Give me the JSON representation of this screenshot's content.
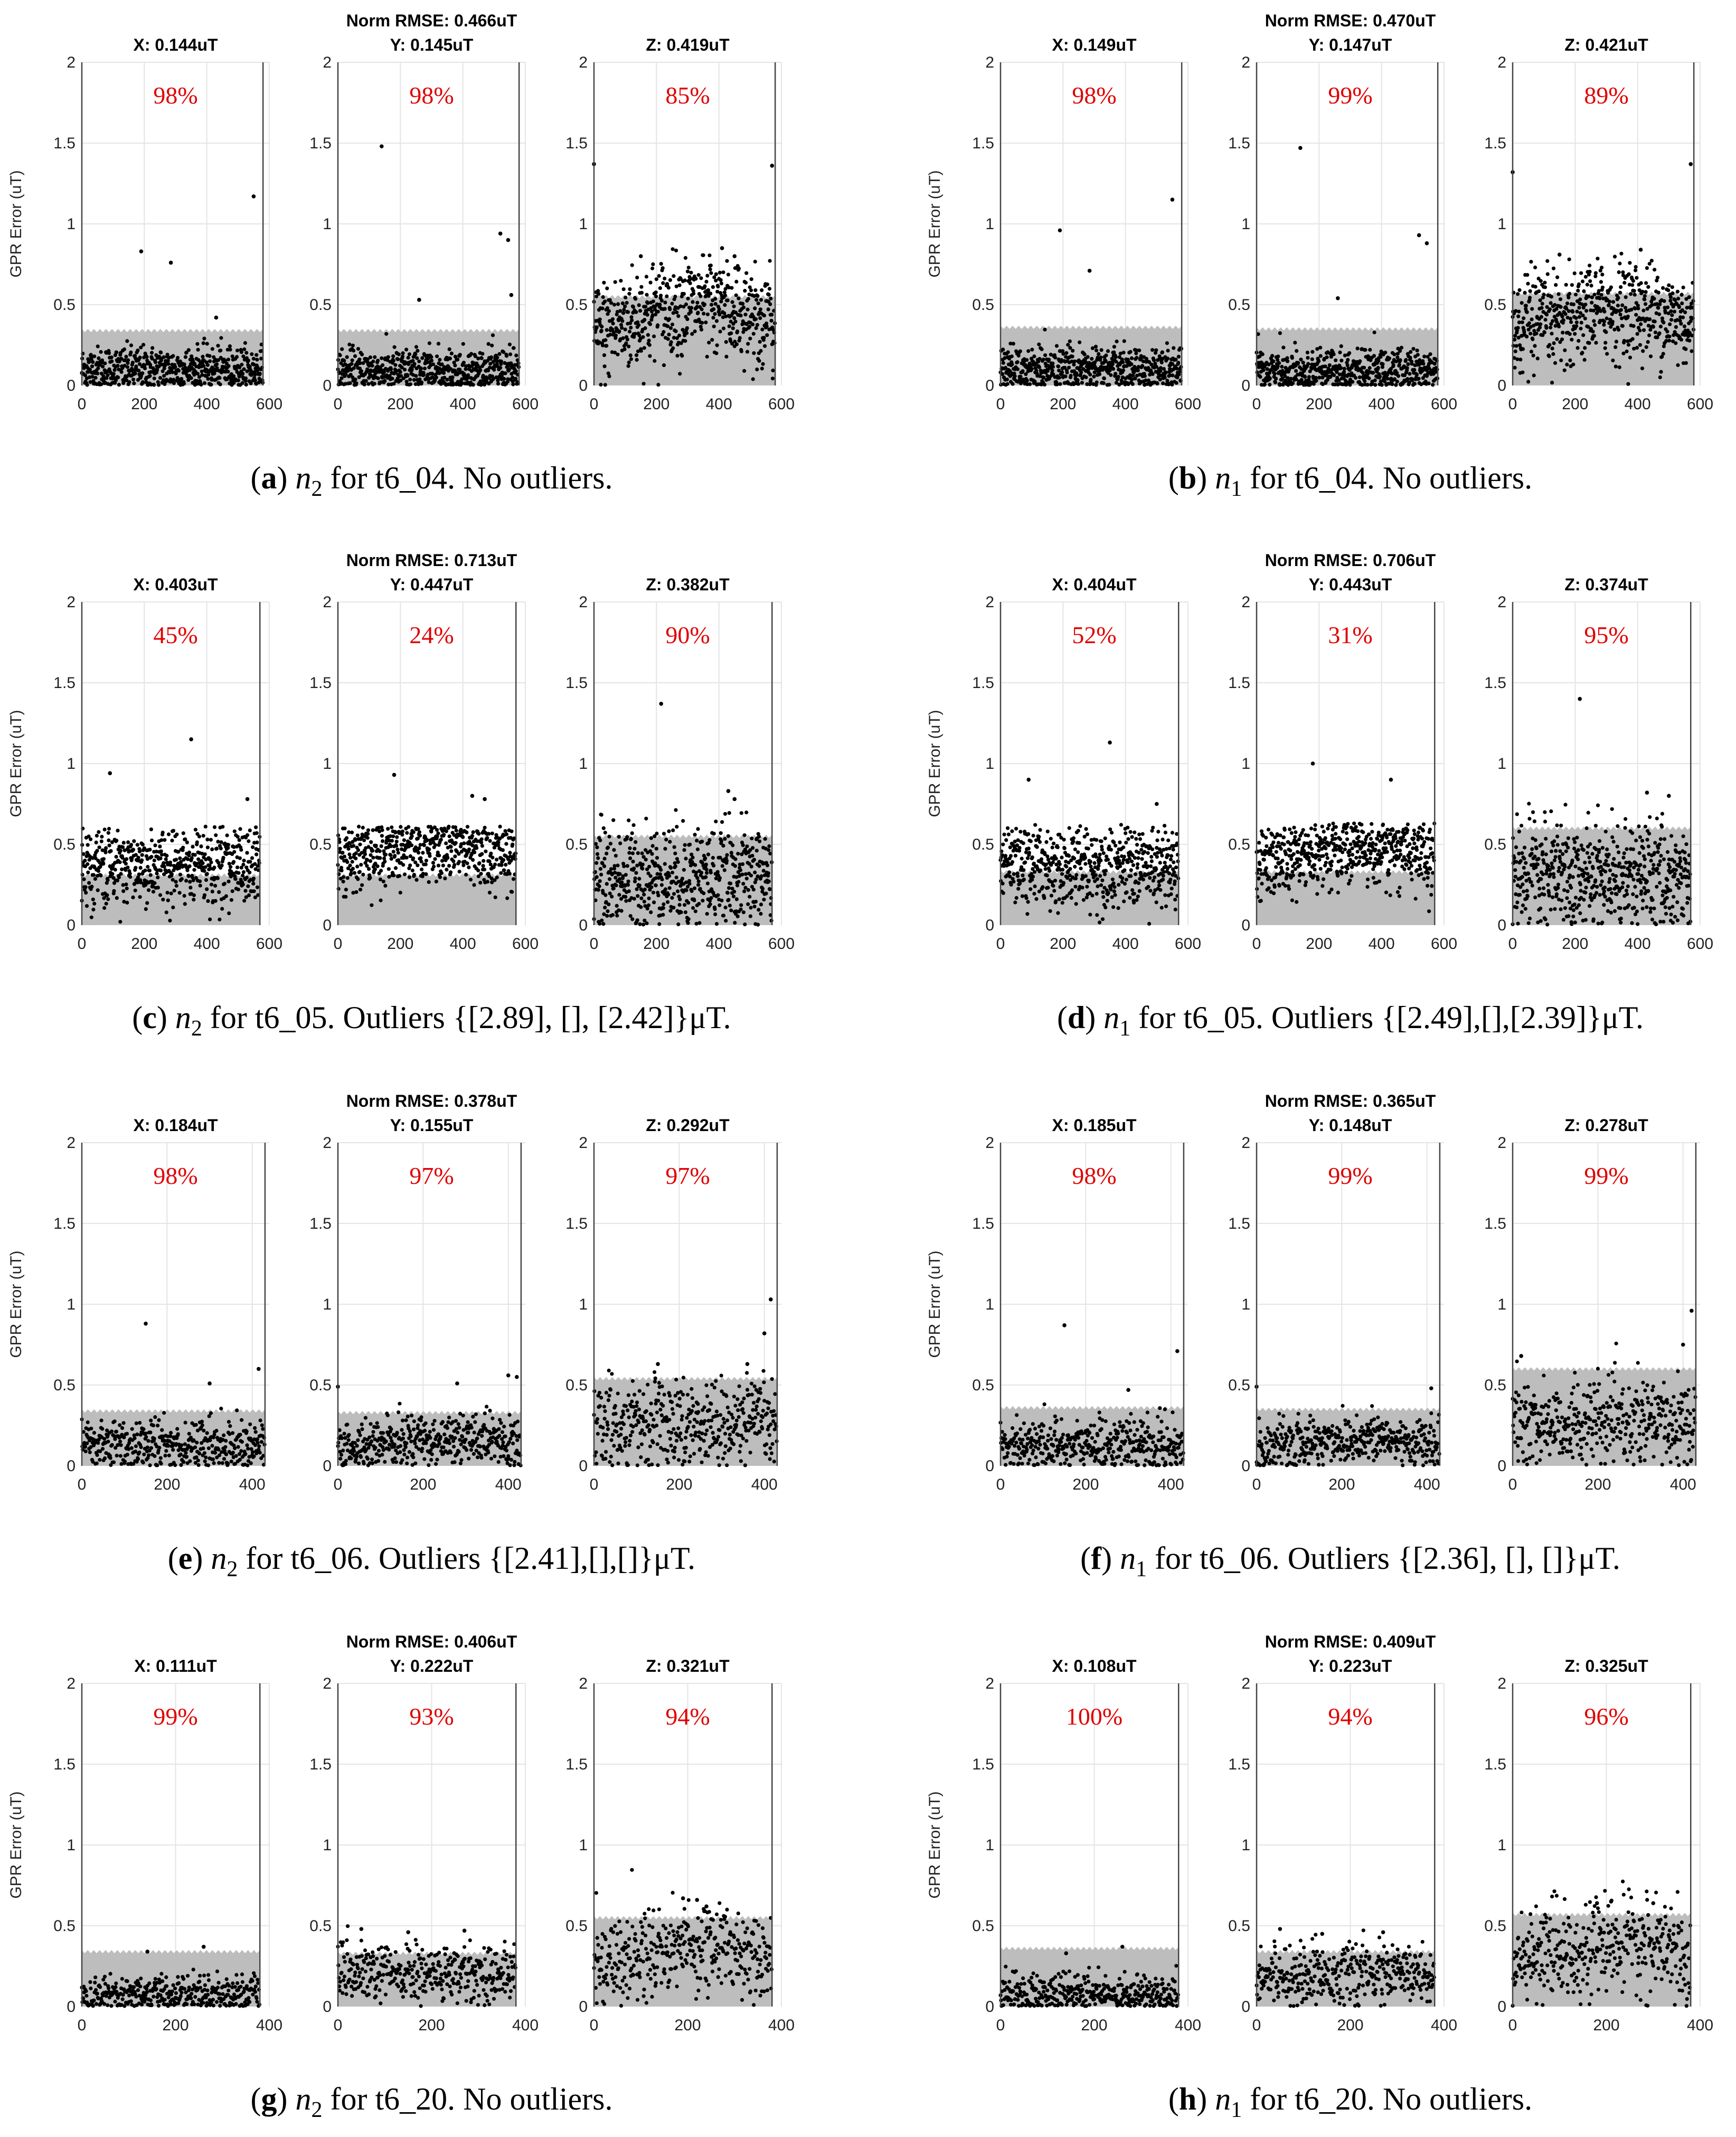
{
  "chart_data": {
    "type": "scatter",
    "ylabel": "GPR Error (uT)",
    "ylim": [
      0,
      2
    ],
    "yticks": [
      "0",
      "0.5",
      "1",
      "1.5",
      "2"
    ],
    "panels": [
      {
        "id": "a",
        "title": "Norm RMSE: 0.466uT",
        "caption": {
          "letter": "a",
          "node": "n",
          "sub": "2",
          "text": " for t6_04. No outliers."
        },
        "xmax": 600,
        "xticks": [
          "0",
          "200",
          "400",
          "600"
        ],
        "npts": 580,
        "subplots": [
          {
            "label": "X: 0.144uT",
            "pct": "98%",
            "band": 0.34,
            "mean": 0.1,
            "sd": 0.07,
            "trend": 0,
            "outliers": [
              [
                190,
                0.83
              ],
              [
                285,
                0.76
              ],
              [
                430,
                0.42
              ],
              [
                550,
                1.17
              ]
            ]
          },
          {
            "label": "Y: 0.145uT",
            "pct": "98%",
            "band": 0.34,
            "mean": 0.09,
            "sd": 0.07,
            "trend": 0,
            "outliers": [
              [
                140,
                1.48
              ],
              [
                260,
                0.53
              ],
              [
                520,
                0.94
              ],
              [
                545,
                0.9
              ],
              [
                555,
                0.56
              ]
            ]
          },
          {
            "label": "Z: 0.419uT",
            "pct": "85%",
            "band": 0.55,
            "mean": 0.38,
            "sd": 0.16,
            "trend": 0.12,
            "outliers": [
              [
                0,
                1.37
              ],
              [
                570,
                1.36
              ],
              [
                410,
                0.85
              ],
              [
                450,
                0.8
              ],
              [
                150,
                0.8
              ]
            ]
          }
        ]
      },
      {
        "id": "b",
        "title": "Norm RMSE: 0.470uT",
        "caption": {
          "letter": "b",
          "node": "n",
          "sub": "1",
          "text": " for t6_04. No outliers."
        },
        "xmax": 600,
        "xticks": [
          "0",
          "200",
          "400",
          "600"
        ],
        "npts": 580,
        "subplots": [
          {
            "label": "X: 0.149uT",
            "pct": "98%",
            "band": 0.36,
            "mean": 0.1,
            "sd": 0.07,
            "trend": 0,
            "outliers": [
              [
                190,
                0.96
              ],
              [
                285,
                0.71
              ],
              [
                550,
                1.15
              ]
            ]
          },
          {
            "label": "Y: 0.147uT",
            "pct": "99%",
            "band": 0.35,
            "mean": 0.09,
            "sd": 0.07,
            "trend": 0,
            "outliers": [
              [
                140,
                1.47
              ],
              [
                260,
                0.54
              ],
              [
                520,
                0.93
              ],
              [
                545,
                0.88
              ]
            ]
          },
          {
            "label": "Z: 0.421uT",
            "pct": "89%",
            "band": 0.57,
            "mean": 0.38,
            "sd": 0.15,
            "trend": 0.1,
            "outliers": [
              [
                0,
                1.32
              ],
              [
                570,
                1.37
              ],
              [
                410,
                0.84
              ],
              [
                150,
                0.81
              ]
            ]
          }
        ]
      },
      {
        "id": "c",
        "title": "Norm RMSE: 0.713uT",
        "caption": {
          "letter": "c",
          "node": "n",
          "sub": "2",
          "text": " for t6_05. Outliers {[2.89], [], [2.42]}μT."
        },
        "xmax": 600,
        "xticks": [
          "0",
          "200",
          "400",
          "600"
        ],
        "npts": 570,
        "subplots": [
          {
            "label": "X: 0.403uT",
            "pct": "45%",
            "band": 0.31,
            "mean": 0.38,
            "sd": 0.13,
            "trend": 0,
            "outliers": [
              [
                90,
                0.94
              ],
              [
                350,
                1.15
              ],
              [
                530,
                0.78
              ]
            ]
          },
          {
            "label": "Y: 0.447uT",
            "pct": "24%",
            "band": 0.31,
            "mean": 0.45,
            "sd": 0.12,
            "trend": 0.08,
            "outliers": [
              [
                180,
                0.93
              ],
              [
                430,
                0.8
              ],
              [
                470,
                0.78
              ]
            ]
          },
          {
            "label": "Z: 0.382uT",
            "pct": "90%",
            "band": 0.55,
            "mean": 0.3,
            "sd": 0.16,
            "trend": 0,
            "outliers": [
              [
                215,
                1.37
              ],
              [
                430,
                0.83
              ],
              [
                450,
                0.78
              ]
            ]
          }
        ]
      },
      {
        "id": "d",
        "title": "Norm RMSE: 0.706uT",
        "caption": {
          "letter": "d",
          "node": "n",
          "sub": "1",
          "text": " for t6_05. Outliers {[2.49],[],[2.39]}μT."
        },
        "xmax": 600,
        "xticks": [
          "0",
          "200",
          "400",
          "600"
        ],
        "npts": 570,
        "subplots": [
          {
            "label": "X: 0.404uT",
            "pct": "52%",
            "band": 0.33,
            "mean": 0.37,
            "sd": 0.13,
            "trend": 0,
            "outliers": [
              [
                90,
                0.9
              ],
              [
                350,
                1.13
              ],
              [
                500,
                0.75
              ]
            ]
          },
          {
            "label": "Y: 0.443uT",
            "pct": "31%",
            "band": 0.33,
            "mean": 0.43,
            "sd": 0.12,
            "trend": 0.06,
            "outliers": [
              [
                180,
                1.0
              ],
              [
                430,
                0.9
              ]
            ]
          },
          {
            "label": "Z: 0.374uT",
            "pct": "95%",
            "band": 0.6,
            "mean": 0.3,
            "sd": 0.16,
            "trend": 0,
            "outliers": [
              [
                215,
                1.4
              ],
              [
                430,
                0.82
              ],
              [
                500,
                0.8
              ]
            ]
          }
        ]
      },
      {
        "id": "e",
        "title": "Norm RMSE: 0.378uT",
        "caption": {
          "letter": "e",
          "node": "n",
          "sub": "2",
          "text": " for t6_06. Outliers {[2.41],[],[]}μT."
        },
        "xmax": 440,
        "xticks": [
          "0",
          "200",
          "400"
        ],
        "npts": 430,
        "subplots": [
          {
            "label": "X: 0.184uT",
            "pct": "98%",
            "band": 0.34,
            "mean": 0.13,
            "sd": 0.08,
            "trend": 0,
            "outliers": [
              [
                150,
                0.88
              ],
              [
                300,
                0.51
              ],
              [
                415,
                0.6
              ]
            ]
          },
          {
            "label": "Y: 0.155uT",
            "pct": "97%",
            "band": 0.33,
            "mean": 0.12,
            "sd": 0.08,
            "trend": 0.05,
            "outliers": [
              [
                0,
                0.49
              ],
              [
                280,
                0.51
              ],
              [
                400,
                0.56
              ],
              [
                420,
                0.55
              ]
            ]
          },
          {
            "label": "Z: 0.292uT",
            "pct": "97%",
            "band": 0.54,
            "mean": 0.26,
            "sd": 0.13,
            "trend": 0,
            "outliers": [
              [
                415,
                1.03
              ],
              [
                400,
                0.82
              ],
              [
                360,
                0.63
              ],
              [
                150,
                0.63
              ]
            ]
          }
        ]
      },
      {
        "id": "f",
        "title": "Norm RMSE: 0.365uT",
        "caption": {
          "letter": "f",
          "node": "n",
          "sub": "1",
          "text": " for t6_06. Outliers {[2.36], [], []}μT."
        },
        "xmax": 440,
        "xticks": [
          "0",
          "200",
          "400"
        ],
        "npts": 430,
        "subplots": [
          {
            "label": "X: 0.185uT",
            "pct": "98%",
            "band": 0.36,
            "mean": 0.13,
            "sd": 0.08,
            "trend": 0,
            "outliers": [
              [
                150,
                0.87
              ],
              [
                415,
                0.71
              ],
              [
                300,
                0.47
              ]
            ]
          },
          {
            "label": "Y: 0.148uT",
            "pct": "99%",
            "band": 0.35,
            "mean": 0.12,
            "sd": 0.08,
            "trend": 0.05,
            "outliers": [
              [
                0,
                0.49
              ],
              [
                410,
                0.48
              ]
            ]
          },
          {
            "label": "Z: 0.278uT",
            "pct": "99%",
            "band": 0.6,
            "mean": 0.26,
            "sd": 0.13,
            "trend": 0,
            "outliers": [
              [
                420,
                0.96
              ],
              [
                400,
                0.75
              ],
              [
                20,
                0.68
              ]
            ]
          }
        ]
      },
      {
        "id": "g",
        "title": "Norm RMSE: 0.406uT",
        "caption": {
          "letter": "g",
          "node": "n",
          "sub": "2",
          "text": " for t6_20. No outliers."
        },
        "xmax": 400,
        "xticks": [
          "0",
          "200",
          "400"
        ],
        "npts": 380,
        "subplots": [
          {
            "label": "X: 0.111uT",
            "pct": "99%",
            "band": 0.34,
            "mean": 0.08,
            "sd": 0.06,
            "trend": 0,
            "outliers": [
              [
                140,
                0.34
              ],
              [
                260,
                0.37
              ]
            ]
          },
          {
            "label": "Y: 0.222uT",
            "pct": "93%",
            "band": 0.33,
            "mean": 0.2,
            "sd": 0.09,
            "trend": 0,
            "outliers": [
              [
                50,
                0.48
              ],
              [
                150,
                0.46
              ],
              [
                270,
                0.47
              ]
            ]
          },
          {
            "label": "Z: 0.321uT",
            "pct": "94%",
            "band": 0.55,
            "mean": 0.3,
            "sd": 0.14,
            "trend": 0.08,
            "outliers": [
              [
                190,
                0.67
              ],
              [
                220,
                0.66
              ],
              [
                240,
                0.62
              ]
            ]
          }
        ]
      },
      {
        "id": "h",
        "title": "Norm RMSE: 0.409uT",
        "caption": {
          "letter": "h",
          "node": "n",
          "sub": "1",
          "text": " for t6_20. No outliers."
        },
        "xmax": 400,
        "xticks": [
          "0",
          "200",
          "400"
        ],
        "npts": 380,
        "subplots": [
          {
            "label": "X: 0.108uT",
            "pct": "100%",
            "band": 0.36,
            "mean": 0.08,
            "sd": 0.06,
            "trend": 0,
            "outliers": [
              [
                260,
                0.37
              ],
              [
                140,
                0.33
              ]
            ]
          },
          {
            "label": "Y: 0.223uT",
            "pct": "94%",
            "band": 0.34,
            "mean": 0.2,
            "sd": 0.09,
            "trend": 0,
            "outliers": [
              [
                50,
                0.48
              ],
              [
                140,
                0.45
              ],
              [
                270,
                0.46
              ]
            ]
          },
          {
            "label": "Z: 0.325uT",
            "pct": "96%",
            "band": 0.57,
            "mean": 0.3,
            "sd": 0.14,
            "trend": 0.08,
            "outliers": [
              [
                180,
                0.64
              ],
              [
                210,
                0.65
              ],
              [
                300,
                0.64
              ]
            ]
          }
        ]
      }
    ]
  }
}
